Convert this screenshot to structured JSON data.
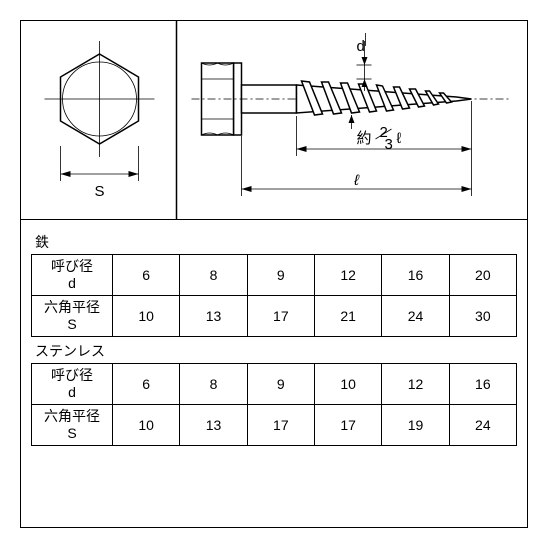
{
  "diagram": {
    "labels": {
      "S": "S",
      "d": "d",
      "l": "ℓ",
      "approx": "約",
      "frac_top": "2",
      "frac_bot": "3",
      "frac_l": "ℓ"
    }
  },
  "tables": [
    {
      "material": "鉄",
      "rows": [
        {
          "label": "呼び径\nd",
          "values": [
            "6",
            "8",
            "9",
            "12",
            "16",
            "20"
          ]
        },
        {
          "label": "六角平径\nS",
          "values": [
            "10",
            "13",
            "17",
            "21",
            "24",
            "30"
          ]
        }
      ]
    },
    {
      "material": "ステンレス",
      "rows": [
        {
          "label": "呼び径\nd",
          "values": [
            "6",
            "8",
            "9",
            "10",
            "12",
            "16"
          ]
        },
        {
          "label": "六角平径\nS",
          "values": [
            "10",
            "13",
            "17",
            "17",
            "19",
            "24"
          ]
        }
      ]
    }
  ],
  "style": {
    "border_color": "#000000",
    "background": "#ffffff",
    "font_size_label": 14,
    "font_size_cell": 14
  }
}
